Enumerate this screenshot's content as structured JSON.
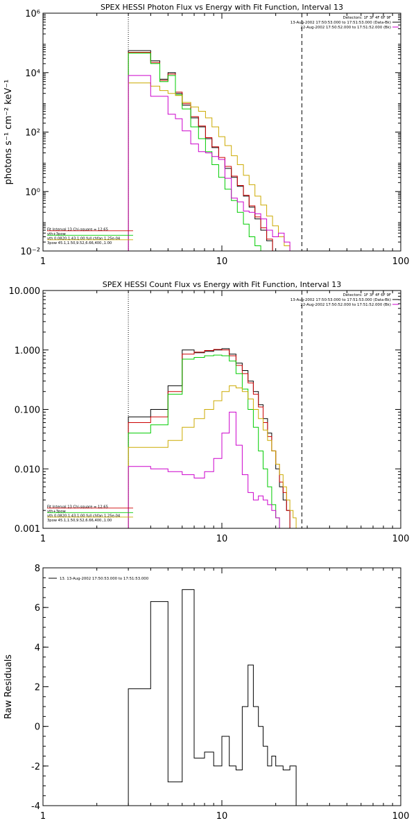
{
  "chart_data": [
    {
      "type": "line",
      "title": "SPEX HESSI Photon Flux vs Energy with Fit Function, Interval 13",
      "ylabel": "photons s⁻¹ cm⁻² keV⁻¹",
      "xlabel": "",
      "xscale": "log",
      "yscale": "log",
      "xlim": [
        1,
        100
      ],
      "ylim": [
        0.01,
        1000000
      ],
      "xticks": [
        1,
        10,
        100
      ],
      "xtick_labels": [
        "1",
        "10",
        "100"
      ],
      "yticks": [
        0.01,
        1,
        100,
        10000,
        1000000
      ],
      "ytick_labels": [
        "10⁻²",
        "10⁰",
        "10²",
        "10⁴",
        "10⁶"
      ],
      "vlines": [
        {
          "x": 3,
          "style": "dotted"
        },
        {
          "x": 28,
          "style": "dashed"
        }
      ],
      "legend_tr": [
        "Detectors: 1F 3F 4F 6F 9F",
        "13-Aug-2002 17:50:53.000 to 17:51:53.000 (Data-Bk)",
        "22-Aug-2002 17:50:52.000 to 17:51:52.000 (Bk)"
      ],
      "legend_tr_colors": [
        "",
        "#000000",
        "#cc00cc"
      ],
      "legend_bl": [
        "Fit Interval 13    Chi-square = 12.65",
        "vth+3pow",
        "vth 0.0820,1.43,1.00  full chfan 1.25e-04",
        "3pow 45.1,1.50,9.52,6.66,400.,1.00"
      ],
      "legend_bl_colors": [
        "",
        "#cc0000",
        "#00cc00",
        "#ccaa00"
      ],
      "edges": [
        3,
        3.5,
        4,
        4.5,
        5,
        5.5,
        6,
        6.7,
        7.4,
        8.1,
        8.8,
        9.6,
        10.4,
        11.3,
        12.2,
        13.2,
        14.2,
        15.3,
        16.5,
        17.8,
        19.2,
        20.7,
        22.3,
        24,
        26,
        28,
        31,
        34
      ],
      "series": [
        {
          "color": "#000000",
          "values": [
            55000,
            55000,
            25000,
            6000,
            10000,
            2000,
            800,
            300,
            150,
            60,
            30,
            12,
            6,
            3,
            1.5,
            0.7,
            0.3,
            0.12,
            0.05,
            0.022,
            0.008,
            null,
            null,
            null,
            null,
            null,
            null
          ]
        },
        {
          "color": "#cc0000",
          "values": [
            48000,
            48000,
            22000,
            5500,
            9000,
            2200,
            900,
            330,
            160,
            65,
            32,
            14,
            7,
            3.3,
            1.6,
            0.75,
            0.33,
            0.14,
            0.06,
            0.025,
            0.01,
            null,
            null,
            null,
            null,
            null,
            null
          ]
        },
        {
          "color": "#00cc00",
          "values": [
            45000,
            45000,
            20000,
            5000,
            8000,
            1800,
            600,
            150,
            60,
            22,
            8,
            3,
            1.2,
            0.5,
            0.2,
            0.08,
            0.03,
            0.015,
            0.01,
            null,
            null,
            null,
            null,
            null,
            null,
            null,
            null
          ]
        },
        {
          "color": "#ccaa00",
          "values": [
            4500,
            4500,
            3500,
            2500,
            2000,
            1700,
            1000,
            700,
            500,
            300,
            150,
            70,
            35,
            16,
            8,
            3.5,
            1.7,
            0.7,
            0.35,
            0.15,
            0.07,
            0.03,
            0.015,
            null,
            null,
            null,
            null
          ]
        },
        {
          "color": "#cc00cc",
          "values": [
            8000,
            8000,
            1600,
            1600,
            400,
            280,
            110,
            40,
            22,
            20,
            15,
            12,
            2.8,
            0.6,
            0.45,
            0.22,
            0.2,
            0.18,
            0.12,
            0.05,
            0.03,
            0.04,
            0.02,
            null,
            null,
            null,
            null
          ]
        }
      ]
    },
    {
      "type": "line",
      "title": "SPEX HESSI Count Flux vs Energy with Fit Function, Interval 13",
      "ylabel": "",
      "xlabel": "",
      "xscale": "log",
      "yscale": "log",
      "xlim": [
        1,
        100
      ],
      "ylim": [
        0.001,
        10
      ],
      "xticks": [
        1,
        10,
        100
      ],
      "xtick_labels": [
        "1",
        "10",
        "100"
      ],
      "yticks": [
        0.001,
        0.01,
        0.1,
        1,
        10
      ],
      "ytick_labels": [
        "0.001",
        "0.010",
        "0.100",
        "1.000",
        "10.000"
      ],
      "vlines": [
        {
          "x": 3,
          "style": "dotted"
        },
        {
          "x": 28,
          "style": "dashed"
        }
      ],
      "legend_tr": [
        "Detectors: 1F 3F 4F 6F 9F",
        "13-Aug-2002 17:50:53.000 to 17:51:53.000 (Data-Bk)",
        "22-Aug-2002 17:50:52.000 to 17:51:52.000 (Bk)"
      ],
      "legend_tr_colors": [
        "",
        "#000000",
        "#cc00cc"
      ],
      "legend_bl": [
        "Fit Interval 13    Chi-square = 12.65",
        "vth+3pow",
        "vth 0.0820,1.43,1.00  full chfan 1.25e-04",
        "3pow 45.1,1.50,9.52,6.66,400.,1.00"
      ],
      "legend_bl_colors": [
        "",
        "#cc0000",
        "#00cc00",
        "#ccaa00"
      ],
      "edges": [
        3,
        4,
        5,
        6,
        7,
        8,
        9,
        10,
        11,
        12,
        13,
        14,
        15,
        16,
        17,
        18,
        19,
        20,
        21,
        22,
        23,
        24,
        25,
        26,
        27,
        28,
        30,
        32,
        35,
        38
      ],
      "series": [
        {
          "color": "#000000",
          "values": [
            0.075,
            0.1,
            0.25,
            1.0,
            0.9,
            0.95,
            1.0,
            1.05,
            0.85,
            0.6,
            0.45,
            0.3,
            0.2,
            0.12,
            0.07,
            0.04,
            0.02,
            0.01,
            0.005,
            0.003,
            0.002,
            null,
            null,
            null,
            null,
            null,
            null,
            null,
            null
          ]
        },
        {
          "color": "#cc0000",
          "values": [
            0.06,
            0.075,
            0.2,
            0.85,
            0.92,
            0.98,
            1.02,
            1.0,
            0.8,
            0.55,
            0.4,
            0.28,
            0.18,
            0.11,
            0.06,
            0.035,
            0.02,
            0.012,
            0.006,
            0.004,
            0.002,
            null,
            null,
            null,
            null,
            null,
            null,
            null,
            null
          ]
        },
        {
          "color": "#00cc00",
          "values": [
            0.04,
            0.055,
            0.18,
            0.7,
            0.75,
            0.8,
            0.82,
            0.8,
            0.65,
            0.4,
            0.22,
            0.1,
            0.05,
            0.02,
            0.01,
            0.005,
            0.0025,
            0.0015,
            0.001,
            null,
            null,
            null,
            null,
            null,
            null,
            null,
            null,
            null,
            null
          ]
        },
        {
          "color": "#ccaa00",
          "values": [
            0.023,
            0.023,
            0.03,
            0.05,
            0.07,
            0.1,
            0.14,
            0.2,
            0.25,
            0.23,
            0.2,
            0.15,
            0.1,
            0.07,
            0.045,
            0.03,
            0.02,
            0.012,
            0.008,
            0.005,
            0.003,
            0.002,
            0.0015,
            0.001,
            null,
            null,
            null,
            null,
            null
          ]
        },
        {
          "color": "#cc00cc",
          "values": [
            0.011,
            0.01,
            0.009,
            0.008,
            0.007,
            0.009,
            0.015,
            0.04,
            0.09,
            0.025,
            0.008,
            0.004,
            0.003,
            0.0035,
            0.003,
            0.0025,
            0.002,
            0.0015,
            0.001,
            null,
            null,
            null,
            null,
            null,
            null,
            null,
            null,
            null,
            null
          ]
        }
      ]
    },
    {
      "type": "line",
      "title": "",
      "ylabel": "Raw Residuals",
      "xlabel": "",
      "xscale": "log",
      "yscale": "linear",
      "xlim": [
        1,
        100
      ],
      "ylim": [
        -4,
        8
      ],
      "xticks": [
        1,
        10,
        100
      ],
      "xtick_labels": [
        "1",
        "10",
        "100"
      ],
      "yticks": [
        -4,
        -2,
        0,
        2,
        4,
        6,
        8
      ],
      "ytick_labels": [
        "-4",
        "-2",
        "0",
        "2",
        "4",
        "6",
        "8"
      ],
      "legend_tl": [
        "13. 13-Aug-2002 17:50:53.000 to 17:51:53.000"
      ],
      "edges": [
        3,
        4,
        5,
        6,
        7,
        8,
        9,
        10,
        11,
        12,
        13,
        14,
        15,
        16,
        17,
        18,
        19,
        20,
        21,
        22,
        24,
        26,
        28
      ],
      "series": [
        {
          "color": "#000000",
          "values": [
            1.9,
            6.3,
            -2.8,
            6.9,
            -1.6,
            -1.3,
            -2.0,
            -0.5,
            -2.0,
            -2.2,
            1.0,
            3.1,
            1.0,
            0.0,
            -1.0,
            -2.0,
            -1.5,
            -2.0,
            -2.0,
            -2.2,
            -2.0,
            -4.0
          ]
        }
      ]
    }
  ]
}
